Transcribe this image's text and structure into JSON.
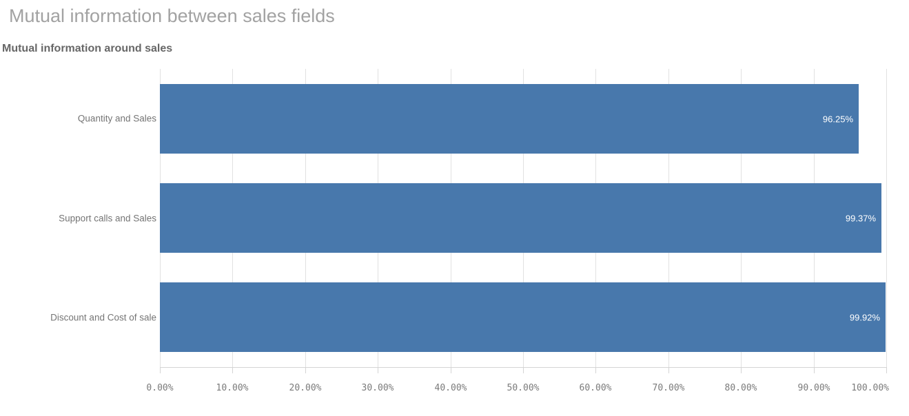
{
  "page": {
    "title": "Mutual information between sales fields"
  },
  "chart": {
    "title": "Mutual information around sales"
  },
  "chart_data": {
    "type": "bar",
    "orientation": "horizontal",
    "title": "Mutual information around sales",
    "categories": [
      "Quantity and Sales",
      "Support calls and Sales",
      "Discount and Cost of sale"
    ],
    "values": [
      96.25,
      99.37,
      99.92
    ],
    "value_labels": [
      "96.25%",
      "99.37%",
      "99.92%"
    ],
    "x_tick_values": [
      0,
      10,
      20,
      30,
      40,
      50,
      60,
      70,
      80,
      90,
      100
    ],
    "x_tick_labels": [
      "0.00%",
      "10.00%",
      "20.00%",
      "30.00%",
      "40.00%",
      "50.00%",
      "60.00%",
      "70.00%",
      "80.00%",
      "90.00%",
      "100.00%"
    ],
    "xlim": [
      0,
      100
    ],
    "grid": true,
    "legend": false,
    "colors": {
      "bar": "#4878ac",
      "value_label": "#ffffff",
      "grid_line": "#e1e1e1",
      "axis_line": "#d4d4d4"
    }
  }
}
